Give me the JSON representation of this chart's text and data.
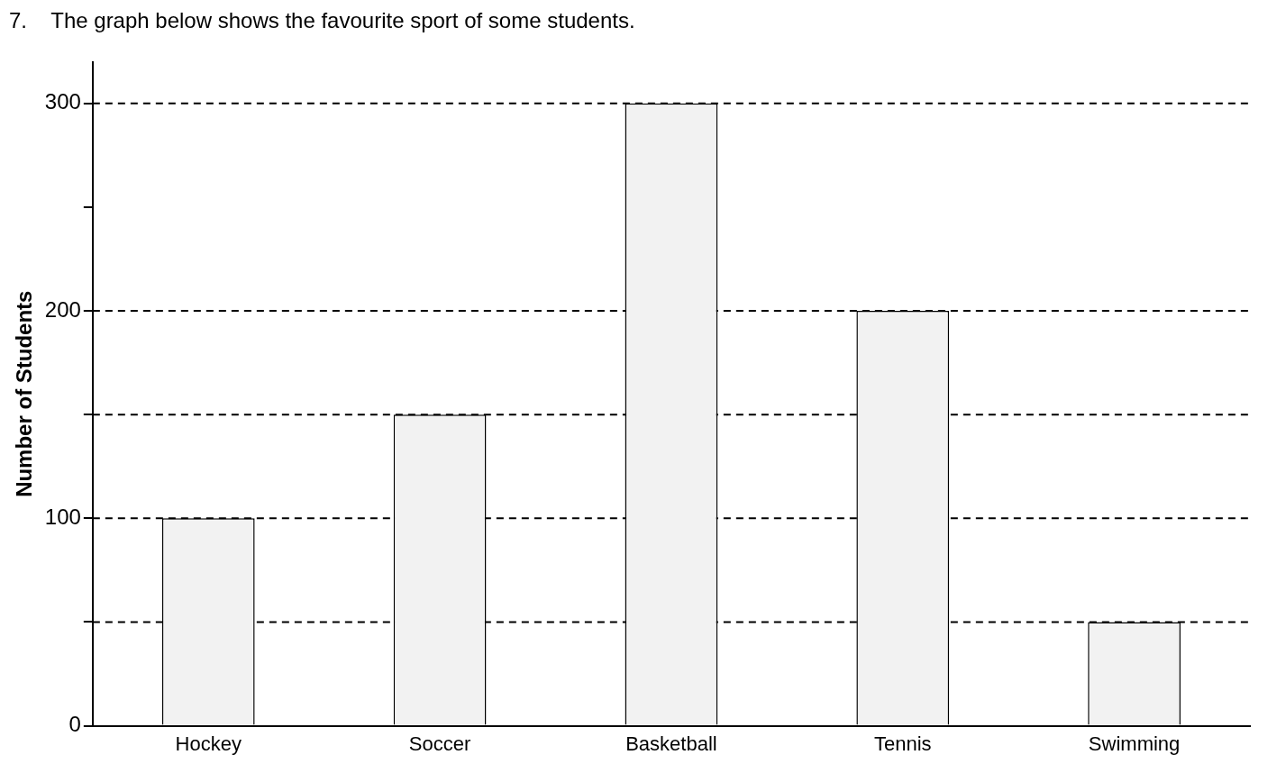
{
  "chart_data": {
    "type": "bar",
    "title": "7.    The graph below shows the favourite sport of some students.",
    "ylabel": "Number of Students",
    "categories": [
      "Hockey",
      "Soccer",
      "Basketball",
      "Tennis",
      "Swimming"
    ],
    "values": [
      100,
      150,
      300,
      200,
      50
    ],
    "color": "#f2f2f2",
    "ylim": [
      0,
      320
    ],
    "yticks": [
      0,
      {
        "value": 50,
        "label": null
      },
      100,
      {
        "value": 150,
        "label": null
      },
      200,
      {
        "value": 250,
        "label": null
      },
      300
    ],
    "grid": false,
    "legend": false,
    "ref_lines": [
      {
        "axis": "y",
        "value": 50,
        "line_style": "dashed",
        "color": "#000000"
      },
      {
        "axis": "y",
        "value": 100,
        "line_style": "dashed",
        "color": "#000000"
      },
      {
        "axis": "y",
        "value": 150,
        "line_style": "dashed",
        "color": "#000000"
      },
      {
        "axis": "y",
        "value": 200,
        "line_style": "dashed",
        "color": "#000000"
      },
      {
        "axis": "y",
        "value": 300,
        "line_style": "dashed",
        "color": "#000000"
      }
    ]
  }
}
